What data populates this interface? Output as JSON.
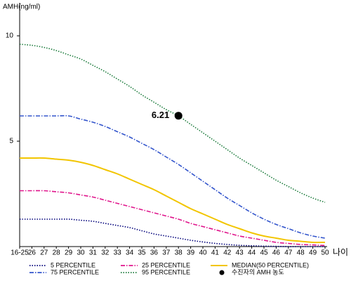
{
  "chart_data": {
    "type": "line",
    "y_label": "AMH(ng/ml)",
    "x_label": "나이",
    "categories": [
      "16-25",
      "26",
      "27",
      "28",
      "29",
      "30",
      "31",
      "32",
      "33",
      "34",
      "35",
      "36",
      "37",
      "38",
      "39",
      "40",
      "41",
      "42",
      "43",
      "44",
      "45",
      "46",
      "47",
      "48",
      "49",
      "50"
    ],
    "ylim": [
      0,
      11.5
    ],
    "yticks": [
      5,
      10
    ],
    "series": [
      {
        "name": "5 PERCENTILE",
        "color": "#00007a",
        "style": "dotted",
        "values": [
          1.3,
          1.3,
          1.3,
          1.3,
          1.3,
          1.25,
          1.2,
          1.1,
          1.0,
          0.9,
          0.75,
          0.6,
          0.5,
          0.4,
          0.3,
          0.22,
          0.15,
          0.1,
          0.06,
          0.04,
          0.02,
          0.01,
          0,
          0,
          0,
          0
        ]
      },
      {
        "name": "25 PERCENTILE",
        "color": "#e0168c",
        "style": "dashdot",
        "values": [
          2.65,
          2.65,
          2.65,
          2.6,
          2.55,
          2.45,
          2.35,
          2.2,
          2.05,
          1.9,
          1.75,
          1.6,
          1.45,
          1.3,
          1.1,
          0.95,
          0.8,
          0.65,
          0.5,
          0.4,
          0.3,
          0.2,
          0.15,
          0.1,
          0.08,
          0.05
        ]
      },
      {
        "name": "MEDIAN(50 PERCENTILE)",
        "color": "#f2c500",
        "style": "solid",
        "values": [
          4.2,
          4.2,
          4.2,
          4.15,
          4.1,
          4.0,
          3.85,
          3.65,
          3.45,
          3.2,
          2.95,
          2.7,
          2.4,
          2.1,
          1.8,
          1.55,
          1.3,
          1.05,
          0.85,
          0.65,
          0.5,
          0.4,
          0.3,
          0.25,
          0.2,
          0.2
        ]
      },
      {
        "name": "75 PERCENTILE",
        "color": "#3355cc",
        "style": "dashdot",
        "values": [
          6.2,
          6.2,
          6.2,
          6.2,
          6.2,
          6.05,
          5.9,
          5.7,
          5.45,
          5.2,
          4.9,
          4.6,
          4.25,
          3.9,
          3.5,
          3.1,
          2.7,
          2.3,
          1.95,
          1.6,
          1.3,
          1.05,
          0.85,
          0.65,
          0.5,
          0.4
        ]
      },
      {
        "name": "95 PERCENTILE",
        "color": "#1a7a3a",
        "style": "dotted",
        "values": [
          9.6,
          9.55,
          9.45,
          9.3,
          9.1,
          8.9,
          8.6,
          8.3,
          7.95,
          7.6,
          7.2,
          6.85,
          6.5,
          6.2,
          5.8,
          5.4,
          5.0,
          4.6,
          4.2,
          3.85,
          3.5,
          3.15,
          2.85,
          2.55,
          2.3,
          2.1
        ]
      }
    ],
    "point": {
      "name": "수진자의 AMH 농도",
      "x": "38",
      "value": 6.21,
      "color": "#000000"
    }
  }
}
